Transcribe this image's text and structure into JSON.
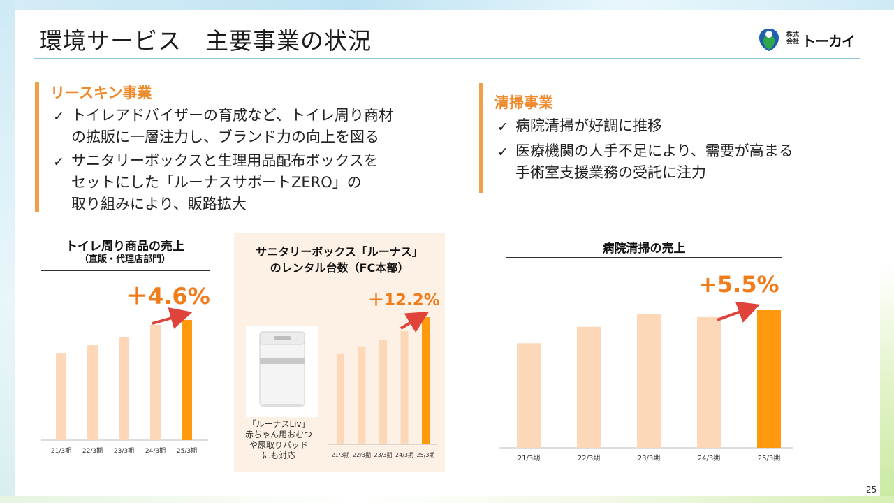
{
  "slide": {
    "title": "環境サービス　主要事業の状況",
    "page_number": "25",
    "logo": {
      "small_line1": "株式",
      "small_line2": "会社",
      "name": "トーカイ"
    }
  },
  "sections": {
    "leaskin": {
      "heading": "リースキン事業",
      "bullets": [
        {
          "lines": [
            "トイレアドバイザーの育成など、トイレ周り商材",
            "の拡販に一層注力し、ブランド力の向上を図る"
          ]
        },
        {
          "lines": [
            "サニタリーボックスと生理用品配布ボックスを",
            "セットにした「ルーナスサポートZERO」の",
            "取り組みにより、販路拡大"
          ]
        }
      ]
    },
    "cleaning": {
      "heading": "清掃事業",
      "bullets": [
        {
          "lines": [
            "病院清掃が好調に推移"
          ]
        },
        {
          "lines": [
            "医療機関の人手不足により、需要が高まる",
            "手術室支援業務の受託に注力"
          ]
        }
      ]
    }
  },
  "product_caption": [
    "「ルーナスLiv」",
    "赤ちゃん用おむつ",
    "や尿取りパッド",
    "にも対応"
  ],
  "colors": {
    "bar_past": "#fcd7b8",
    "bar_current": "#ff9a0e",
    "arrow": "#e0433a",
    "accent_text": "#f07c1c",
    "section_bar": "#f0a04b"
  },
  "chart_data": [
    {
      "type": "bar",
      "title": "トイレ周り商品の売上",
      "subtitle": "（直販・代理店部門）",
      "categories": [
        "21/3期",
        "22/3期",
        "23/3期",
        "24/3期",
        "25/3期"
      ],
      "values": [
        72,
        79,
        86,
        96,
        100
      ],
      "ylim": [
        0,
        100
      ],
      "value_unit": "relative index (no y-axis shown; values estimated from bar heights, latest = 100)",
      "annotation": "＋4.6%",
      "highlight_index": 4
    },
    {
      "type": "bar",
      "title": "サニタリーボックス「ルーナス」",
      "subtitle": "のレンタル台数（FC本部）",
      "categories": [
        "21/3期",
        "22/3期",
        "23/3期",
        "24/3期",
        "25/3期"
      ],
      "values": [
        71,
        77,
        82,
        89,
        100
      ],
      "ylim": [
        0,
        100
      ],
      "value_unit": "relative index (no y-axis shown; values estimated from bar heights, latest = 100)",
      "annotation": "＋12.2%",
      "highlight_index": 4
    },
    {
      "type": "bar",
      "title": "病院清掃の売上",
      "subtitle": "",
      "categories": [
        "21/3期",
        "22/3期",
        "23/3期",
        "24/3期",
        "25/3期"
      ],
      "values": [
        76,
        88,
        97,
        95,
        100
      ],
      "ylim": [
        0,
        100
      ],
      "value_unit": "relative index (no y-axis shown; values estimated from bar heights, latest = 100)",
      "annotation": "+5.5%",
      "highlight_index": 4
    }
  ]
}
